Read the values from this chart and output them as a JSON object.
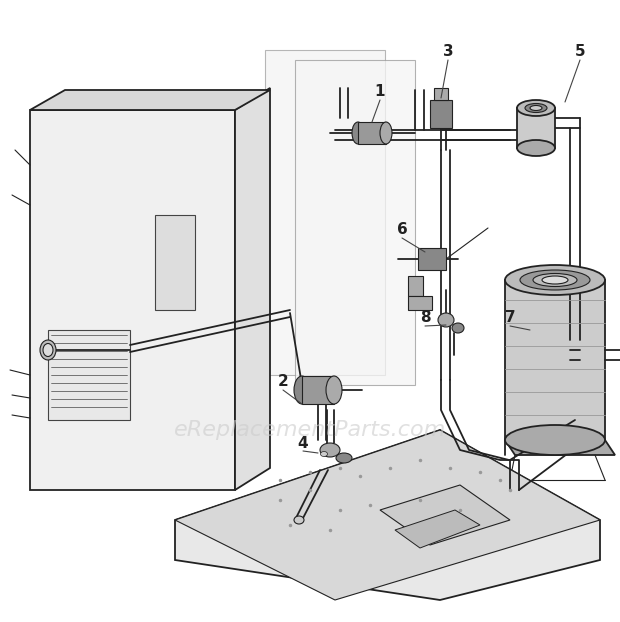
{
  "bg_color": "#ffffff",
  "line_color": "#444444",
  "dark_line": "#222222",
  "watermark_text": "eReplacementParts.com",
  "watermark_color": "#cccccc",
  "watermark_fontsize": 16,
  "label_fontsize": 11,
  "panel_face": "#f2f2f2",
  "panel_side": "#e0e0e0",
  "panel_top": "#d8d8d8",
  "comp_fill": "#d0d0d0",
  "comp_dark": "#888888"
}
